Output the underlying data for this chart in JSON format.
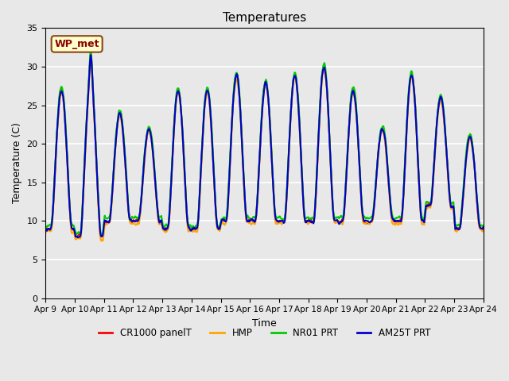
{
  "title": "Temperatures",
  "xlabel": "Time",
  "ylabel": "Temperature (C)",
  "ylim": [
    0,
    35
  ],
  "yticks": [
    0,
    5,
    10,
    15,
    20,
    25,
    30,
    35
  ],
  "background_color": "#e8e8e8",
  "plot_bg_color": "#e8e8e8",
  "grid_color": "white",
  "station_label": "WP_met",
  "series": {
    "CR1000 panelT": {
      "color": "#ff0000",
      "lw": 1.5
    },
    "HMP": {
      "color": "#ffa500",
      "lw": 1.5
    },
    "NR01 PRT": {
      "color": "#00cc00",
      "lw": 1.5
    },
    "AM25T PRT": {
      "color": "#0000cc",
      "lw": 1.5
    }
  },
  "x_tick_labels": [
    "Apr 9",
    "Apr 10",
    "Apr 11",
    "Apr 12",
    "Apr 13",
    "Apr 14",
    "Apr 15",
    "Apr 16",
    "Apr 17",
    "Apr 18",
    "Apr 19",
    "Apr 20",
    "Apr 21",
    "Apr 22",
    "Apr 23",
    "Apr 24"
  ],
  "n_days": 15,
  "pts_per_day": 48
}
